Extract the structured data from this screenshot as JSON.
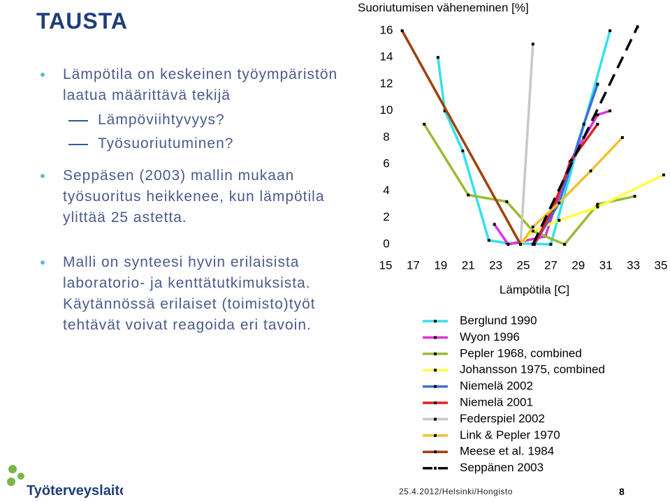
{
  "header": {
    "title": "TAUSTA"
  },
  "bullets": [
    {
      "text": "Lämpötila on keskeinen työympäristön laatua määrittävä tekijä",
      "subs": [
        "Lämpöviihtyvyys?",
        "Työsuoriutuminen?"
      ]
    },
    {
      "text": "Seppäsen (2003) mallin mukaan työsuoritus heikkenee, kun lämpötila ylittää 25 astetta."
    },
    {
      "text": "Malli on synteesi hyvin erilaisista laboratorio- ja kenttätutkimuksista. Käytännössä erilaiset (toimisto)työt tehtävät voivat reagoida eri tavoin."
    }
  ],
  "chart_data": {
    "type": "line",
    "y_label": "Suoriutumisen väheneminen [%]",
    "x_label": "Lämpötila [C]",
    "xlim": [
      15,
      35
    ],
    "xticks": [
      15,
      17,
      19,
      21,
      23,
      25,
      27,
      29,
      31,
      33,
      35
    ],
    "ylim": [
      0,
      16
    ],
    "yticks": [
      0,
      2,
      4,
      6,
      8,
      10,
      12,
      14,
      16
    ],
    "series": [
      {
        "name": "Berglund 1990",
        "color": "#33e0f0",
        "x": [
          18.8,
          19.3,
          20.6,
          22.5,
          23.8,
          27,
          31.3
        ],
        "values": [
          14,
          10,
          7,
          0.3,
          0.1,
          0,
          16
        ]
      },
      {
        "name": "Wyon 1996",
        "color": "#e030e0",
        "x": [
          22.9,
          23.9,
          26.6,
          28.4,
          30.4,
          31.3
        ],
        "values": [
          1.5,
          0,
          0.6,
          6.2,
          9.7,
          10
        ]
      },
      {
        "name": "Pepler 1968, combined",
        "color": "#99bb33",
        "x": [
          17.8,
          21,
          23.8,
          25.7,
          28,
          30.4,
          33.1
        ],
        "values": [
          9,
          3.7,
          3.2,
          1,
          0,
          3,
          3.6
        ]
      },
      {
        "name": "Johansson 1975, combined",
        "color": "#ffff44",
        "x": [
          24.8,
          25.7,
          27.6,
          30.4,
          35.2
        ],
        "values": [
          0,
          1,
          1.8,
          2.8,
          5.2
        ]
      },
      {
        "name": "Niemelä 2002",
        "color": "#3a6fd8",
        "x": [
          25.8,
          27.6,
          29.4,
          30.4
        ],
        "values": [
          0,
          3.1,
          9,
          12
        ]
      },
      {
        "name": "Niemelä 2001",
        "color": "#e02020",
        "x": [
          25.8,
          27.1,
          28.5,
          30.4
        ],
        "values": [
          0,
          2.6,
          6.3,
          9
        ]
      },
      {
        "name": "Federspiel 2002",
        "color": "#c8c8c8",
        "x": [
          24.8,
          25.7
        ],
        "values": [
          0,
          15
        ]
      },
      {
        "name": "Link & Pepler 1970",
        "color": "#f0c030",
        "x": [
          24.8,
          25.7,
          27.6,
          29.9,
          32.2
        ],
        "values": [
          0,
          1.3,
          3.1,
          5.5,
          8
        ]
      },
      {
        "name": "Meese et al. 1984",
        "color": "#a0400a",
        "x": [
          16.2,
          24.8
        ],
        "values": [
          16,
          0
        ]
      },
      {
        "name": "Seppänen 2003",
        "color": "#000000",
        "dashed": true,
        "x": [
          25.7,
          29.4,
          33.3
        ],
        "values": [
          0,
          8,
          16.3
        ]
      }
    ]
  },
  "footer": {
    "text": "25.4.2012/Helsinki/Hongisto",
    "page": "8",
    "logo": "Työterveyslaitos"
  }
}
